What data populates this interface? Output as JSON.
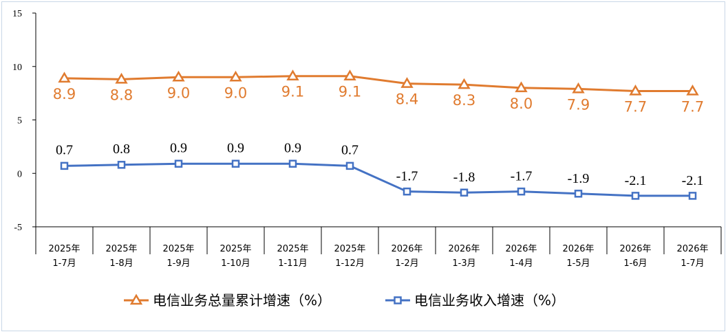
{
  "chart_data": {
    "type": "line",
    "categories": [
      [
        "2025年",
        "1-7月"
      ],
      [
        "2025年",
        "1-8月"
      ],
      [
        "2025年",
        "1-9月"
      ],
      [
        "2025年",
        "1-10月"
      ],
      [
        "2025年",
        "1-11月"
      ],
      [
        "2025年",
        "1-12月"
      ],
      [
        "2026年",
        "1-2月"
      ],
      [
        "2026年",
        "1-3月"
      ],
      [
        "2026年",
        "1-4月"
      ],
      [
        "2026年",
        "1-5月"
      ],
      [
        "2026年",
        "1-6月"
      ],
      [
        "2026年",
        "1-7月"
      ]
    ],
    "ylim": [
      -5,
      15
    ],
    "yticks": [
      "15",
      "10",
      "5",
      "0",
      "-5"
    ],
    "ytick_values": [
      15,
      10,
      5,
      0,
      -5
    ],
    "series": [
      {
        "name": "电信业务总量累计增速（%）",
        "values": [
          8.9,
          8.8,
          9.0,
          9.0,
          9.1,
          9.1,
          8.4,
          8.3,
          8.0,
          7.9,
          7.7,
          7.7
        ],
        "labels": [
          "8.9",
          "8.8",
          "9.0",
          "9.0",
          "9.1",
          "9.1",
          "8.4",
          "8.3",
          "8.0",
          "7.9",
          "7.7",
          "7.7"
        ],
        "color": "#e07b2f",
        "marker": "triangle"
      },
      {
        "name": "电信业务收入增速（%）",
        "values": [
          0.7,
          0.8,
          0.9,
          0.9,
          0.9,
          0.7,
          -1.7,
          -1.8,
          -1.7,
          -1.9,
          -2.1,
          -2.1
        ],
        "labels": [
          "0.7",
          "0.8",
          "0.9",
          "0.9",
          "0.9",
          "0.7",
          "-1.7",
          "-1.8",
          "-1.7",
          "-1.9",
          "-2.1",
          "-2.1"
        ],
        "color": "#4472c4",
        "marker": "square"
      }
    ],
    "legend": "bottom",
    "grid": false
  }
}
